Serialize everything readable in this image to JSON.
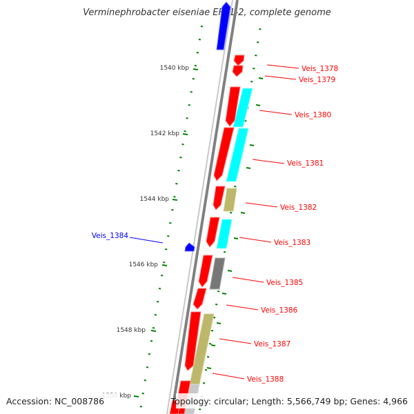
{
  "title": "Verminephrobacter eiseniae EF01-2, complete genome",
  "accession": "Accession: NC_008786",
  "topology": "Topology: circular; Length: 5,566,749 bp; Genes: 4,966",
  "colors": {
    "forward_gene": "#ff0000",
    "reverse_gene": "#0000ff",
    "cog_cyan": "#00ffff",
    "cog_tan": "#bdb76b",
    "cog_gray": "#808080",
    "tick_green": "#008000",
    "backbone": "#808080"
  },
  "kbp_labels": [
    "1540 kbp",
    "1542 kbp",
    "1544 kbp",
    "1546 kbp",
    "1548 kbp",
    "1550 kbp"
  ],
  "gene_labels": [
    {
      "text": "Veis_1378",
      "strand": "forward"
    },
    {
      "text": "Veis_1379",
      "strand": "forward"
    },
    {
      "text": "Veis_1380",
      "strand": "forward"
    },
    {
      "text": "Veis_1381",
      "strand": "forward"
    },
    {
      "text": "Veis_1382",
      "strand": "forward"
    },
    {
      "text": "Veis_1383",
      "strand": "forward"
    },
    {
      "text": "Veis_1384",
      "strand": "reverse"
    },
    {
      "text": "Veis_1385",
      "strand": "forward"
    },
    {
      "text": "Veis_1386",
      "strand": "forward"
    },
    {
      "text": "Veis_1387",
      "strand": "forward"
    },
    {
      "text": "Veis_1388",
      "strand": "forward"
    }
  ]
}
